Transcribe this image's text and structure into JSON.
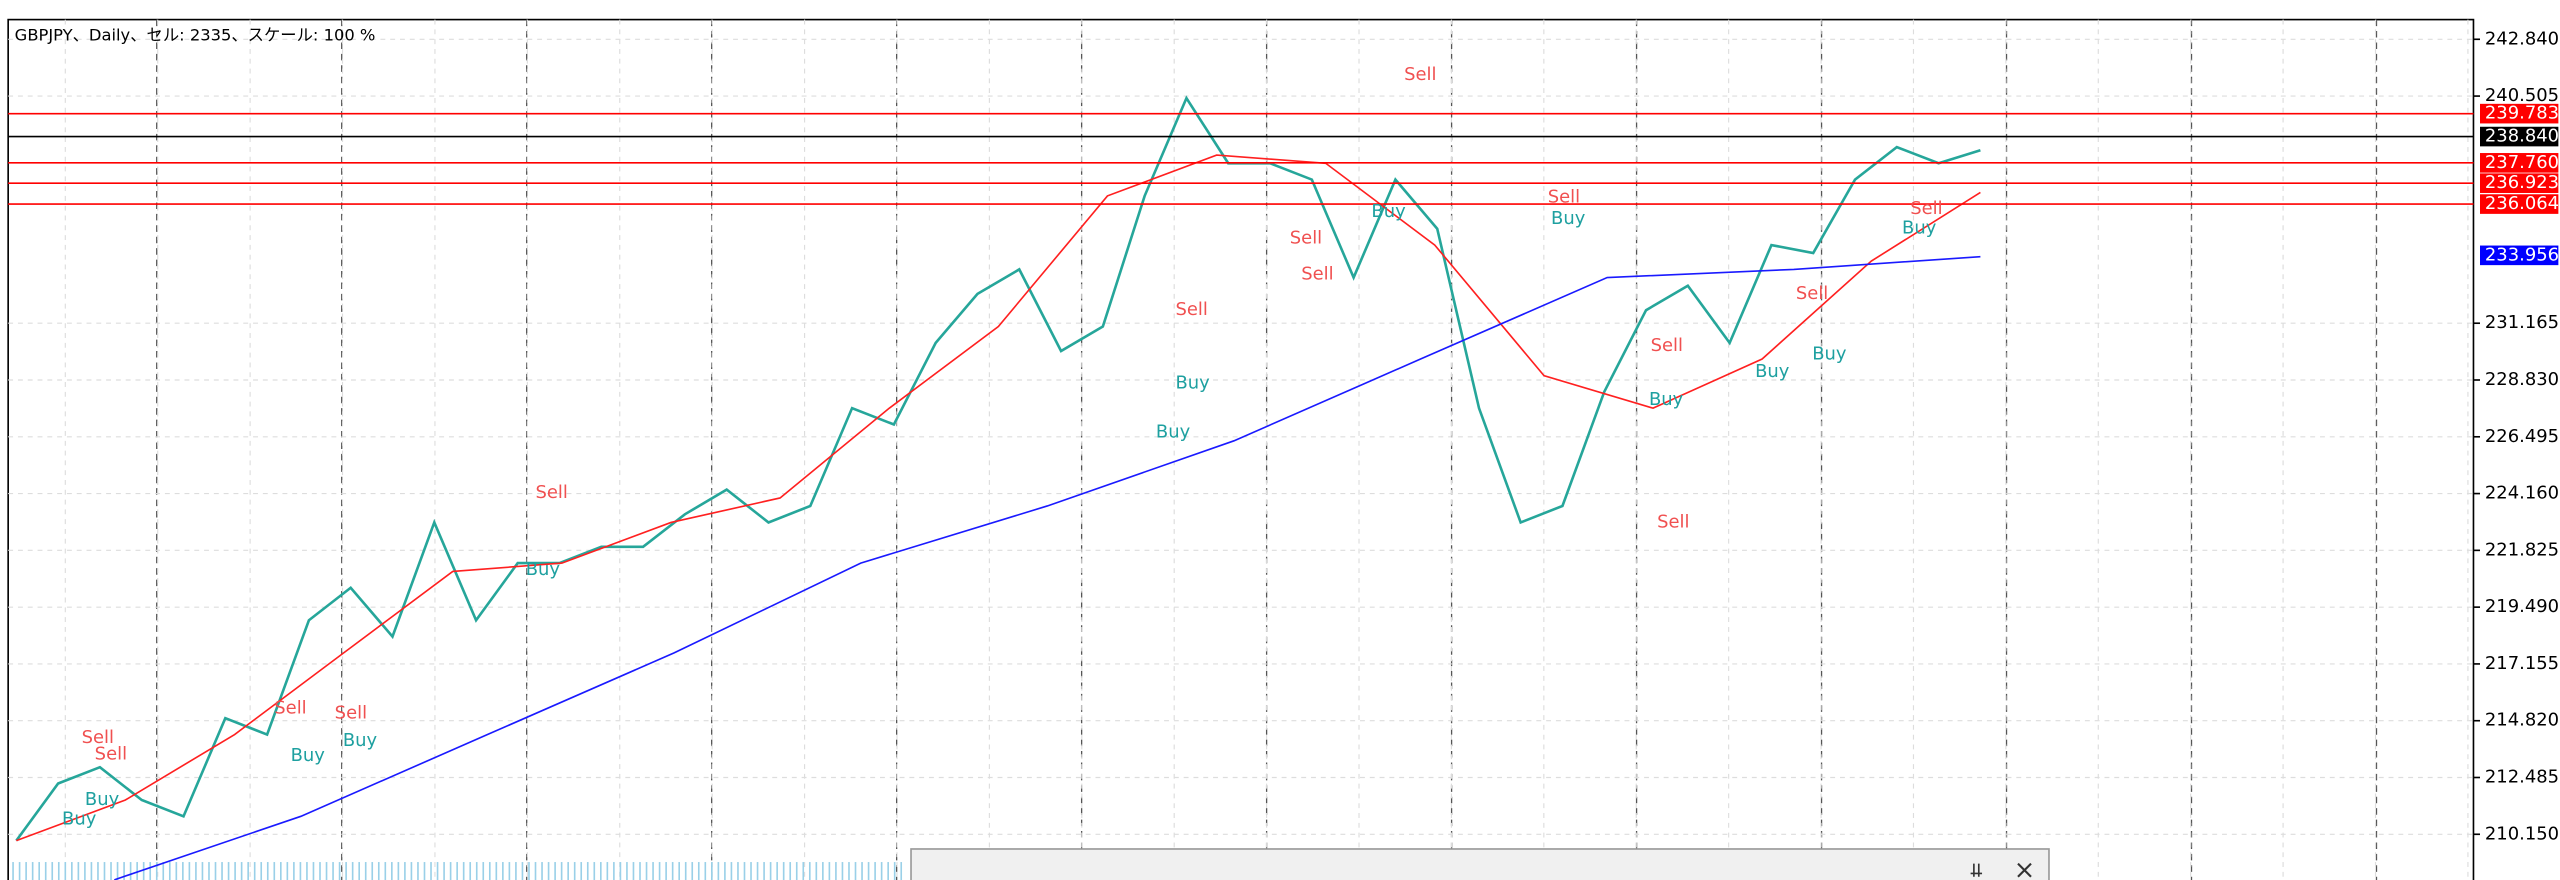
{
  "header": "GBPJPY、Daily、セル: 2335、スケール: 100 %",
  "chart_data": {
    "type": "line",
    "ylim": [
      208.27,
      243.65
    ],
    "grid": true,
    "yticks": [
      {
        "value": 242.84,
        "label": "242.840"
      },
      {
        "value": 240.505,
        "label": "240.505"
      },
      {
        "value": 231.165,
        "label": "231.165"
      },
      {
        "value": 228.83,
        "label": "228.830"
      },
      {
        "value": 226.495,
        "label": "226.495"
      },
      {
        "value": 224.16,
        "label": "224.160"
      },
      {
        "value": 221.825,
        "label": "221.825"
      },
      {
        "value": 219.49,
        "label": "219.490"
      },
      {
        "value": 217.155,
        "label": "217.155"
      },
      {
        "value": 214.82,
        "label": "214.820"
      },
      {
        "value": 212.485,
        "label": "212.485"
      },
      {
        "value": 210.15,
        "label": "210.150"
      }
    ],
    "series": [
      {
        "color": "#26a69a",
        "values": [
          209.89,
          212.24,
          212.91,
          211.56,
          210.89,
          214.92,
          214.25,
          218.95,
          220.29,
          218.28,
          222.97,
          218.95,
          221.3,
          221.3,
          221.97,
          221.97,
          223.31,
          224.32,
          222.97,
          223.65,
          227.67,
          227.0,
          230.36,
          232.37,
          233.38,
          230.02,
          231.03,
          236.4,
          240.42,
          237.74,
          237.74,
          237.07,
          233.04,
          237.07,
          235.05,
          227.67,
          222.97,
          223.65,
          228.34,
          231.7,
          232.71,
          230.36,
          234.38,
          234.05,
          237.07,
          238.41,
          237.74,
          238.28
        ]
      },
      {
        "color": "#ff2020",
        "values": [
          209.89,
          211.56,
          214.25,
          217.61,
          220.96,
          221.3,
          222.97,
          223.98,
          227.67,
          231.03,
          236.4,
          238.08,
          237.74,
          234.38,
          229.01,
          227.67,
          229.69,
          233.72,
          236.54
        ]
      },
      {
        "color": "#1a1aff",
        "values": [
          208.28,
          210.89,
          214.25,
          217.61,
          221.3,
          223.65,
          226.33,
          229.69,
          233.04,
          233.38,
          233.9
        ]
      }
    ],
    "levels": [
      {
        "value": 239.783,
        "label": "239.783",
        "color": "#ff0000",
        "line": true
      },
      {
        "value": 238.84,
        "label": "238.840",
        "color": "#000000",
        "line": true
      },
      {
        "value": 237.76,
        "label": "237.760",
        "color": "#ff0000",
        "line": true
      },
      {
        "value": 236.923,
        "label": "236.923",
        "color": "#ff0000",
        "line": true
      },
      {
        "value": 236.064,
        "label": "236.064",
        "color": "#ff0000",
        "line": true
      },
      {
        "value": 233.956,
        "label": "233.956",
        "color": "#0000ff",
        "line": false
      }
    ],
    "signals": [
      "Sell",
      "Sell",
      "Buy",
      "Buy",
      "Buy",
      "Sell",
      "Sell",
      "Buy",
      "Sell",
      "Buy",
      "Sell",
      "Buy",
      "Buy",
      "Sell",
      "Sell",
      "Buy",
      "Sell",
      "Sell",
      "Buy",
      "Sell",
      "Buy",
      "Sell",
      "Buy",
      "Sell",
      "Buy",
      "Buy",
      "Sell"
    ]
  }
}
